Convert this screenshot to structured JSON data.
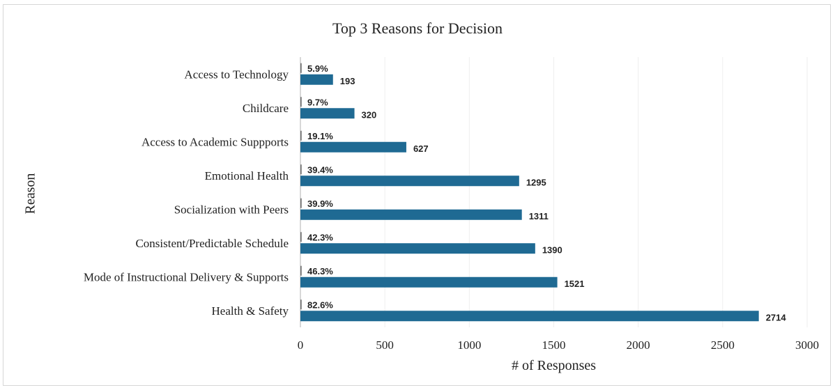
{
  "chart_data": {
    "type": "bar",
    "orientation": "horizontal",
    "title": "Top 3 Reasons for Decision",
    "xlabel": "# of Responses",
    "ylabel": "Reason",
    "xlim": [
      0,
      3000
    ],
    "xticks": [
      0,
      500,
      1000,
      1500,
      2000,
      2500,
      3000
    ],
    "grid": true,
    "bar_color": "#1f6a93",
    "categories": [
      "Access to Technology",
      "Childcare",
      "Access to Academic Suppports",
      "Emotional Health",
      "Socialization with Peers",
      "Consistent/Predictable Schedule",
      "Mode of Instructional Delivery & Supports",
      "Health & Safety"
    ],
    "values": [
      193,
      320,
      627,
      1295,
      1311,
      1390,
      1521,
      2714
    ],
    "percent_labels": [
      "5.9%",
      "9.7%",
      "19.1%",
      "39.4%",
      "39.9%",
      "42.3%",
      "46.3%",
      "82.6%"
    ]
  }
}
